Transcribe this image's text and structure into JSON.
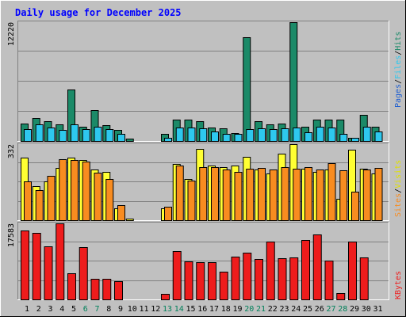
{
  "chart_data": {
    "type": "bar",
    "title": "Daily usage for December 2025",
    "days": [
      "1",
      "2",
      "3",
      "4",
      "5",
      "6",
      "7",
      "8",
      "9",
      "10",
      "11",
      "12",
      "13",
      "14",
      "15",
      "16",
      "17",
      "18",
      "19",
      "20",
      "21",
      "22",
      "23",
      "24",
      "25",
      "26",
      "27",
      "28",
      "29",
      "30",
      "31"
    ],
    "weekend_days": [
      "6",
      "7",
      "13",
      "14",
      "20",
      "21",
      "27",
      "28"
    ],
    "panels": [
      {
        "id": "hits-files-pages",
        "ymax_label": "12220",
        "ymax": 12220,
        "series": [
          {
            "name": "Hits",
            "color": "#1b8a68",
            "values": [
              1800,
              2400,
              2000,
              1700,
              5300,
              1500,
              3200,
              1600,
              1100,
              220,
              0,
              0,
              700,
              2200,
              2200,
              2000,
              1400,
              1300,
              850,
              10700,
              2000,
              1700,
              1800,
              12220,
              1500,
              2200,
              2200,
              2200,
              300,
              2700,
              1500
            ]
          },
          {
            "name": "Files",
            "color": "#2ec8ee",
            "values": [
              1200,
              1700,
              1400,
              1100,
              1700,
              1200,
              1500,
              1200,
              700,
              0,
              0,
              0,
              350,
              1400,
              1400,
              1300,
              950,
              750,
              700,
              1200,
              1300,
              1200,
              1300,
              1400,
              900,
              1500,
              1400,
              700,
              300,
              1500,
              950
            ]
          },
          {
            "name": "Pages",
            "color": "#1f5fd0",
            "values": [
              0,
              0,
              0,
              0,
              0,
              0,
              0,
              0,
              0,
              0,
              0,
              0,
              0,
              0,
              0,
              0,
              0,
              0,
              0,
              0,
              0,
              0,
              0,
              0,
              0,
              0,
              0,
              0,
              0,
              0,
              0
            ]
          }
        ]
      },
      {
        "id": "visits-sites",
        "ymax_label": "332",
        "ymax": 332,
        "series": [
          {
            "name": "Visits",
            "color": "#ffff33",
            "values": [
              272,
              148,
              168,
              228,
              272,
              262,
              220,
              210,
              53,
              6,
              0,
              0,
              53,
              245,
              180,
              310,
              238,
              232,
              238,
              278,
              220,
              205,
              292,
              332,
              225,
              210,
              223,
              95,
              308,
              225,
              205
            ]
          },
          {
            "name": "Sites",
            "color": "#f88c20",
            "values": [
              170,
              133,
              193,
              267,
              262,
              257,
              207,
              180,
              67,
              0,
              0,
              0,
              58,
              237,
              172,
              230,
              233,
              223,
              212,
              225,
              229,
              223,
              233,
              225,
              230,
              222,
              250,
              218,
              125,
              223,
              227
            ]
          }
        ]
      },
      {
        "id": "kbytes",
        "ymax_label": "17583",
        "ymax": 17583,
        "series": [
          {
            "name": "KBytes",
            "color": "#ee1c1c",
            "values": [
              16000,
              15400,
              12200,
              17500,
              6100,
              12000,
              4700,
              4800,
              4300,
              0,
              0,
              0,
              1350,
              11200,
              8800,
              8600,
              8600,
              6400,
              9800,
              10800,
              9400,
              13300,
              9500,
              9700,
              13800,
              15000,
              8900,
              1500,
              13300,
              9700,
              0
            ]
          }
        ]
      }
    ],
    "legend": {
      "panel1": [
        "Pages",
        "Files",
        "Hits"
      ],
      "panel2": [
        "Sites",
        "Visits"
      ],
      "panel3": [
        "KBytes"
      ],
      "separator": "/"
    }
  },
  "colors": {
    "background": "#c0c0c0",
    "title_text": "#0000ff",
    "label_text": "#000000",
    "weekend_label": "#00805a",
    "grid": "#808080",
    "legend_pages": "#1f5fd0",
    "legend_files": "#2ec8ee",
    "legend_hits": "#1b8a68",
    "legend_sites": "#f88c20",
    "legend_visits": "#e0e000",
    "legend_kbytes": "#ee1c1c"
  }
}
